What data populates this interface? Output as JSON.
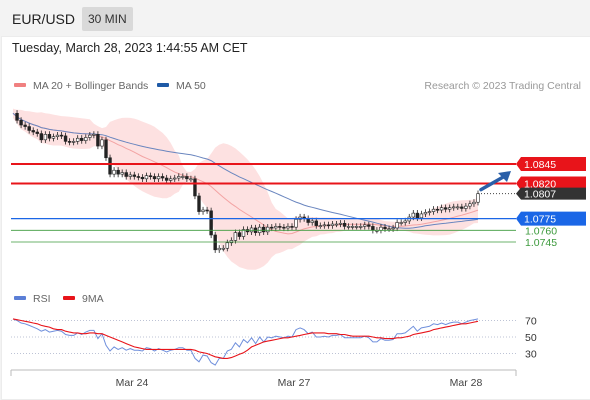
{
  "header": {
    "symbol": "EUR/USD",
    "timeframe": "30 MIN"
  },
  "date_text": "Tuesday, March 28, 2023 1:44:55 AM CET",
  "legend": {
    "ma20": {
      "label": "MA 20 + Bollinger Bands",
      "color": "#f08080"
    },
    "ma50": {
      "label": "MA 50",
      "color": "#1f5aa6"
    },
    "rsi": {
      "label": "RSI",
      "color": "#5b7fd6"
    },
    "ma9": {
      "label": "9MA",
      "color": "#e8141a"
    }
  },
  "copyright": "Research © 2023 Trading Central",
  "colors": {
    "resistance": "#e8141a",
    "pivot": "#1a66e6",
    "support": "#3c9a3c",
    "arrow": "#2a5fa8",
    "price_tag": "#333333"
  },
  "chart_data": [
    {
      "type": "candlestick",
      "x_ticks": [
        "Mar 24",
        "Mar 27",
        "Mar 28"
      ],
      "current_price": {
        "value": 1.0807,
        "label": "1.0807"
      },
      "levels": [
        {
          "value": 1.0845,
          "label": "1.0845",
          "kind": "resistance"
        },
        {
          "value": 1.082,
          "label": "1.0820",
          "kind": "resistance"
        },
        {
          "value": 1.0775,
          "label": "1.0775",
          "kind": "pivot"
        },
        {
          "value": 1.076,
          "label": "1.0760",
          "kind": "support"
        },
        {
          "value": 1.0745,
          "label": "1.0745",
          "kind": "support"
        }
      ],
      "forecast": "up",
      "series": [
        {
          "name": "MA 20 + Bollinger Bands"
        },
        {
          "name": "MA 50"
        }
      ],
      "close_path": [
        1.091,
        1.0901,
        1.0895,
        1.0893,
        1.0888,
        1.0886,
        1.0884,
        1.0876,
        1.0883,
        1.0878,
        1.088,
        1.0882,
        1.0881,
        1.0874,
        1.0873,
        1.0874,
        1.0878,
        1.0875,
        1.0879,
        1.0882,
        1.0883,
        1.0868,
        1.0876,
        1.0853,
        1.0832,
        1.0837,
        1.0832,
        1.0834,
        1.0829,
        1.0831,
        1.0829,
        1.0828,
        1.0826,
        1.083,
        1.0829,
        1.0826,
        1.0829,
        1.0827,
        1.0824,
        1.0826,
        1.0827,
        1.0829,
        1.0829,
        1.0826,
        1.0826,
        1.0804,
        1.0784,
        1.0786,
        1.0785,
        1.0754,
        1.0735,
        1.0737,
        1.0737,
        1.0744,
        1.0747,
        1.0757,
        1.0752,
        1.0761,
        1.0758,
        1.0763,
        1.0757,
        1.0764,
        1.0758,
        1.0764,
        1.0763,
        1.0765,
        1.0764,
        1.0763,
        1.0765,
        1.0764,
        1.0774,
        1.0777,
        1.0775,
        1.077,
        1.0772,
        1.0766,
        1.0766,
        1.0767,
        1.0766,
        1.0768,
        1.0768,
        1.0769,
        1.0765,
        1.0765,
        1.0765,
        1.0765,
        1.0765,
        1.0767,
        1.0765,
        1.076,
        1.076,
        1.0764,
        1.0762,
        1.0762,
        1.0763,
        1.077,
        1.077,
        1.0772,
        1.0777,
        1.0782,
        1.0776,
        1.0781,
        1.0783,
        1.0784,
        1.0787,
        1.0786,
        1.0789,
        1.0787,
        1.0789,
        1.079,
        1.079,
        1.0788,
        1.0791,
        1.0794,
        1.0796,
        1.0807
      ]
    },
    {
      "type": "line",
      "series": [
        {
          "name": "RSI"
        },
        {
          "name": "9MA"
        }
      ],
      "y_ticks": [
        70,
        50,
        30
      ],
      "ylim": [
        0,
        100
      ],
      "rsi_values": [
        72,
        70,
        67,
        66,
        64,
        62,
        60,
        57,
        59,
        56,
        57,
        58,
        57,
        53,
        52,
        52,
        55,
        53,
        56,
        58,
        58,
        48,
        54,
        40,
        33,
        38,
        35,
        37,
        34,
        36,
        34,
        34,
        33,
        37,
        36,
        33,
        36,
        34,
        32,
        34,
        35,
        37,
        37,
        34,
        34,
        24,
        20,
        28,
        27,
        19,
        16,
        24,
        24,
        33,
        35,
        43,
        38,
        47,
        43,
        49,
        42,
        50,
        44,
        50,
        49,
        51,
        50,
        49,
        51,
        50,
        59,
        61,
        59,
        54,
        56,
        50,
        50,
        51,
        50,
        52,
        52,
        53,
        49,
        49,
        49,
        49,
        49,
        51,
        49,
        44,
        44,
        48,
        46,
        46,
        47,
        54,
        54,
        55,
        59,
        63,
        57,
        61,
        62,
        63,
        66,
        65,
        67,
        65,
        67,
        68,
        68,
        66,
        68,
        70,
        71,
        72
      ],
      "ma9_values": [
        72,
        71,
        70,
        69,
        68,
        67,
        66,
        64,
        63,
        62,
        60,
        59,
        59,
        57,
        56,
        55,
        55,
        54,
        54,
        55,
        55,
        54,
        54,
        52,
        50,
        48,
        46,
        44,
        42,
        40,
        38,
        37,
        36,
        35,
        35,
        35,
        35,
        35,
        35,
        35,
        35,
        35,
        35,
        35,
        35,
        34,
        32,
        31,
        30,
        28,
        26,
        25,
        24,
        24,
        25,
        27,
        29,
        31,
        34,
        38,
        40,
        42,
        44,
        45,
        46,
        47,
        48,
        49,
        49,
        50,
        51,
        52,
        53,
        54,
        55,
        55,
        55,
        55,
        54,
        54,
        54,
        53,
        53,
        52,
        51,
        51,
        51,
        51,
        51,
        50,
        49,
        49,
        48,
        48,
        48,
        49,
        49,
        50,
        51,
        53,
        54,
        55,
        56,
        57,
        59,
        60,
        61,
        62,
        63,
        64,
        65,
        66,
        66,
        67,
        68,
        69
      ]
    }
  ]
}
